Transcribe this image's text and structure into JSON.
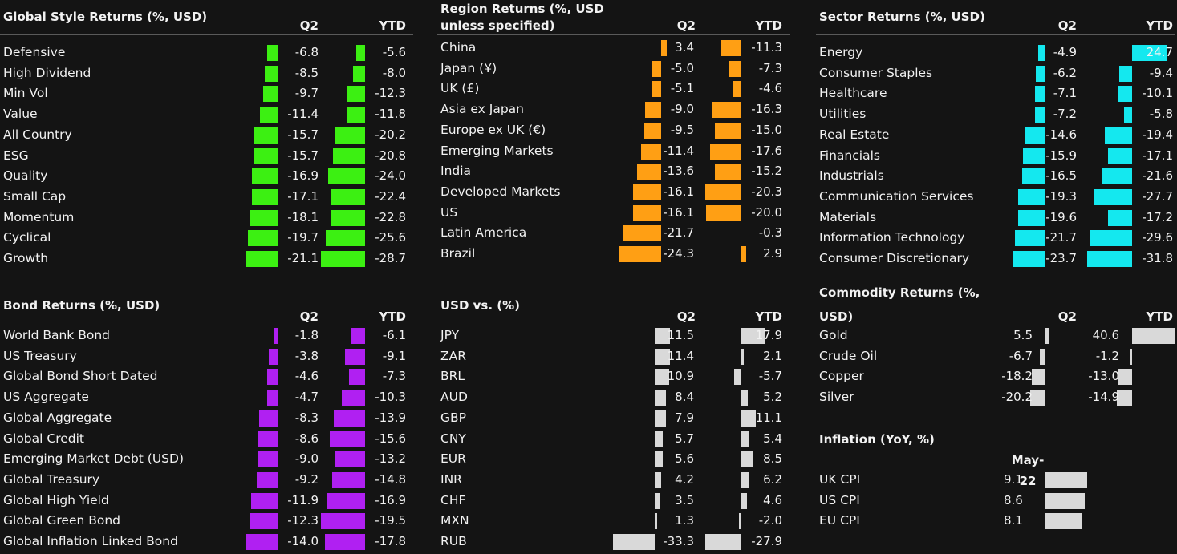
{
  "colors": {
    "style": "#3cf012",
    "region": "#ff9f14",
    "sector": "#14e8ef",
    "bond": "#b020f2",
    "usd": "#d9d9d9",
    "commodity": "#d9d9d9",
    "inflation": "#d9d9d9"
  },
  "chart_data": [
    {
      "id": "style",
      "type": "table",
      "title": "Global Style Returns (%, USD)",
      "columns": [
        "Q2",
        "YTD"
      ],
      "rows": [
        {
          "label": "Defensive",
          "q2": -6.8,
          "ytd": -5.6,
          "q2_text": "-6.8",
          "ytd_text": "-5.6"
        },
        {
          "label": "High Dividend",
          "q2": -8.5,
          "ytd": -8.0,
          "q2_text": "-8.5",
          "ytd_text": "-8.0"
        },
        {
          "label": "Min Vol",
          "q2": -9.7,
          "ytd": -12.3,
          "q2_text": "-9.7",
          "ytd_text": "-12.3"
        },
        {
          "label": "Value",
          "q2": -11.4,
          "ytd": -11.8,
          "q2_text": "-11.4",
          "ytd_text": "-11.8"
        },
        {
          "label": "All Country",
          "q2": -15.7,
          "ytd": -20.2,
          "q2_text": "-15.7",
          "ytd_text": "-20.2"
        },
        {
          "label": "ESG",
          "q2": -15.7,
          "ytd": -20.8,
          "q2_text": "-15.7",
          "ytd_text": "-20.8"
        },
        {
          "label": "Quality",
          "q2": -16.9,
          "ytd": -24.0,
          "q2_text": "-16.9",
          "ytd_text": "-24.0"
        },
        {
          "label": "Small Cap",
          "q2": -17.1,
          "ytd": -22.4,
          "q2_text": "-17.1",
          "ytd_text": "-22.4"
        },
        {
          "label": "Momentum",
          "q2": -18.1,
          "ytd": -22.8,
          "q2_text": "-18.1",
          "ytd_text": "-22.8"
        },
        {
          "label": "Cyclical",
          "q2": -19.7,
          "ytd": -25.6,
          "q2_text": "-19.7",
          "ytd_text": "-25.6"
        },
        {
          "label": "Growth",
          "q2": -21.1,
          "ytd": -28.7,
          "q2_text": "-21.1",
          "ytd_text": "-28.7"
        }
      ]
    },
    {
      "id": "region",
      "type": "table",
      "title": "Region Returns (%, USD",
      "title2": "unless specified)",
      "columns": [
        "Q2",
        "YTD"
      ],
      "rows": [
        {
          "label": "China",
          "q2": 3.4,
          "ytd": -11.3,
          "q2_text": "3.4",
          "ytd_text": "-11.3"
        },
        {
          "label": "Japan (¥)",
          "q2": -5.0,
          "ytd": -7.3,
          "q2_text": "-5.0",
          "ytd_text": "-7.3"
        },
        {
          "label": "UK (£)",
          "q2": -5.1,
          "ytd": -4.6,
          "q2_text": "-5.1",
          "ytd_text": "-4.6"
        },
        {
          "label": "Asia ex Japan",
          "q2": -9.0,
          "ytd": -16.3,
          "q2_text": "-9.0",
          "ytd_text": "-16.3"
        },
        {
          "label": "Europe ex UK (€)",
          "q2": -9.5,
          "ytd": -15.0,
          "q2_text": "-9.5",
          "ytd_text": "-15.0"
        },
        {
          "label": "Emerging Markets",
          "q2": -11.4,
          "ytd": -17.6,
          "q2_text": "-11.4",
          "ytd_text": "-17.6"
        },
        {
          "label": "India",
          "q2": -13.6,
          "ytd": -15.2,
          "q2_text": "-13.6",
          "ytd_text": "-15.2"
        },
        {
          "label": "Developed Markets",
          "q2": -16.1,
          "ytd": -20.3,
          "q2_text": "-16.1",
          "ytd_text": "-20.3"
        },
        {
          "label": "US",
          "q2": -16.1,
          "ytd": -20.0,
          "q2_text": "-16.1",
          "ytd_text": "-20.0"
        },
        {
          "label": "Latin America",
          "q2": -21.7,
          "ytd": -0.3,
          "q2_text": "-21.7",
          "ytd_text": "-0.3"
        },
        {
          "label": "Brazil",
          "q2": -24.3,
          "ytd": 2.9,
          "q2_text": "-24.3",
          "ytd_text": "2.9"
        }
      ]
    },
    {
      "id": "sector",
      "type": "table",
      "title": "Sector Returns (%, USD)",
      "columns": [
        "Q2",
        "YTD"
      ],
      "rows": [
        {
          "label": "Energy",
          "q2": -4.9,
          "ytd": 24.7,
          "q2_text": "-4.9",
          "ytd_text": "24.7"
        },
        {
          "label": "Consumer Staples",
          "q2": -6.2,
          "ytd": -9.4,
          "q2_text": "-6.2",
          "ytd_text": "-9.4"
        },
        {
          "label": "Healthcare",
          "q2": -7.1,
          "ytd": -10.1,
          "q2_text": "-7.1",
          "ytd_text": "-10.1"
        },
        {
          "label": "Utilities",
          "q2": -7.2,
          "ytd": -5.8,
          "q2_text": "-7.2",
          "ytd_text": "-5.8"
        },
        {
          "label": "Real Estate",
          "q2": -14.6,
          "ytd": -19.4,
          "q2_text": "-14.6",
          "ytd_text": "-19.4"
        },
        {
          "label": "Financials",
          "q2": -15.9,
          "ytd": -17.1,
          "q2_text": "-15.9",
          "ytd_text": "-17.1"
        },
        {
          "label": "Industrials",
          "q2": -16.5,
          "ytd": -21.6,
          "q2_text": "-16.5",
          "ytd_text": "-21.6"
        },
        {
          "label": "Communication Services",
          "q2": -19.3,
          "ytd": -27.7,
          "q2_text": "-19.3",
          "ytd_text": "-27.7"
        },
        {
          "label": "Materials",
          "q2": -19.6,
          "ytd": -17.2,
          "q2_text": "-19.6",
          "ytd_text": "-17.2"
        },
        {
          "label": "Information Technology",
          "q2": -21.7,
          "ytd": -29.6,
          "q2_text": "-21.7",
          "ytd_text": "-29.6"
        },
        {
          "label": "Consumer Discretionary",
          "q2": -23.7,
          "ytd": -31.8,
          "q2_text": "-23.7",
          "ytd_text": "-31.8"
        }
      ]
    },
    {
      "id": "bond",
      "type": "table",
      "title": "Bond Returns (%, USD)",
      "columns": [
        "Q2",
        "YTD"
      ],
      "rows": [
        {
          "label": "World Bank Bond",
          "q2": -1.8,
          "ytd": -6.1,
          "q2_text": "-1.8",
          "ytd_text": "-6.1"
        },
        {
          "label": "US Treasury",
          "q2": -3.8,
          "ytd": -9.1,
          "q2_text": "-3.8",
          "ytd_text": "-9.1"
        },
        {
          "label": "Global Bond Short Dated",
          "q2": -4.6,
          "ytd": -7.3,
          "q2_text": "-4.6",
          "ytd_text": "-7.3"
        },
        {
          "label": "US Aggregate",
          "q2": -4.7,
          "ytd": -10.3,
          "q2_text": "-4.7",
          "ytd_text": "-10.3"
        },
        {
          "label": "Global Aggregate",
          "q2": -8.3,
          "ytd": -13.9,
          "q2_text": "-8.3",
          "ytd_text": "-13.9"
        },
        {
          "label": "Global Credit",
          "q2": -8.6,
          "ytd": -15.6,
          "q2_text": "-8.6",
          "ytd_text": "-15.6"
        },
        {
          "label": "Emerging Market Debt (USD)",
          "q2": -9.0,
          "ytd": -13.2,
          "q2_text": "-9.0",
          "ytd_text": "-13.2"
        },
        {
          "label": "Global Treasury",
          "q2": -9.2,
          "ytd": -14.8,
          "q2_text": "-9.2",
          "ytd_text": "-14.8"
        },
        {
          "label": "Global High Yield",
          "q2": -11.9,
          "ytd": -16.9,
          "q2_text": "-11.9",
          "ytd_text": "-16.9"
        },
        {
          "label": "Global Green Bond",
          "q2": -12.3,
          "ytd": -19.5,
          "q2_text": "-12.3",
          "ytd_text": "-19.5"
        },
        {
          "label": "Global Inflation Linked Bond",
          "q2": -14.0,
          "ytd": -17.8,
          "q2_text": "-14.0",
          "ytd_text": "-17.8"
        }
      ]
    },
    {
      "id": "usd",
      "type": "table",
      "title": "USD vs. (%)",
      "columns": [
        "Q2",
        "YTD"
      ],
      "rows": [
        {
          "label": "JPY",
          "q2": 11.5,
          "ytd": 17.9,
          "q2_text": "11.5",
          "ytd_text": "17.9"
        },
        {
          "label": "ZAR",
          "q2": 11.4,
          "ytd": 2.1,
          "q2_text": "11.4",
          "ytd_text": "2.1"
        },
        {
          "label": "BRL",
          "q2": 10.9,
          "ytd": -5.7,
          "q2_text": "10.9",
          "ytd_text": "-5.7"
        },
        {
          "label": "AUD",
          "q2": 8.4,
          "ytd": 5.2,
          "q2_text": "8.4",
          "ytd_text": "5.2"
        },
        {
          "label": "GBP",
          "q2": 7.9,
          "ytd": 11.1,
          "q2_text": "7.9",
          "ytd_text": "11.1"
        },
        {
          "label": "CNY",
          "q2": 5.7,
          "ytd": 5.4,
          "q2_text": "5.7",
          "ytd_text": "5.4"
        },
        {
          "label": "EUR",
          "q2": 5.6,
          "ytd": 8.5,
          "q2_text": "5.6",
          "ytd_text": "8.5"
        },
        {
          "label": "INR",
          "q2": 4.2,
          "ytd": 6.2,
          "q2_text": "4.2",
          "ytd_text": "6.2"
        },
        {
          "label": "CHF",
          "q2": 3.5,
          "ytd": 4.6,
          "q2_text": "3.5",
          "ytd_text": "4.6"
        },
        {
          "label": "MXN",
          "q2": 1.3,
          "ytd": -2.0,
          "q2_text": "1.3",
          "ytd_text": "-2.0"
        },
        {
          "label": "RUB",
          "q2": -33.3,
          "ytd": -27.9,
          "q2_text": "-33.3",
          "ytd_text": "-27.9"
        }
      ]
    },
    {
      "id": "commodity",
      "type": "table",
      "title": "Commodity Returns (%,",
      "title2": "USD)",
      "columns": [
        "Q2",
        "YTD"
      ],
      "rows": [
        {
          "label": "Gold",
          "q2": 5.5,
          "ytd": 40.6,
          "q2_text": "5.5",
          "ytd_text": "40.6"
        },
        {
          "label": "Crude Oil",
          "q2": -6.7,
          "ytd": -1.2,
          "q2_text": "-6.7",
          "ytd_text": "-1.2"
        },
        {
          "label": "Copper",
          "q2": -18.2,
          "ytd": -13.0,
          "q2_text": "-18.2",
          "ytd_text": "-13.0"
        },
        {
          "label": "Silver",
          "q2": -20.2,
          "ytd": -14.9,
          "q2_text": "-20.2",
          "ytd_text": "-14.9"
        }
      ]
    },
    {
      "id": "inflation",
      "type": "bar",
      "title": "Inflation (YoY, %)",
      "column": "May-22",
      "rows": [
        {
          "label": "UK CPI",
          "value": 9.1,
          "value_text": "9.1"
        },
        {
          "label": "US CPI",
          "value": 8.6,
          "value_text": "8.6"
        },
        {
          "label": "EU CPI",
          "value": 8.1,
          "value_text": "8.1"
        }
      ]
    }
  ]
}
